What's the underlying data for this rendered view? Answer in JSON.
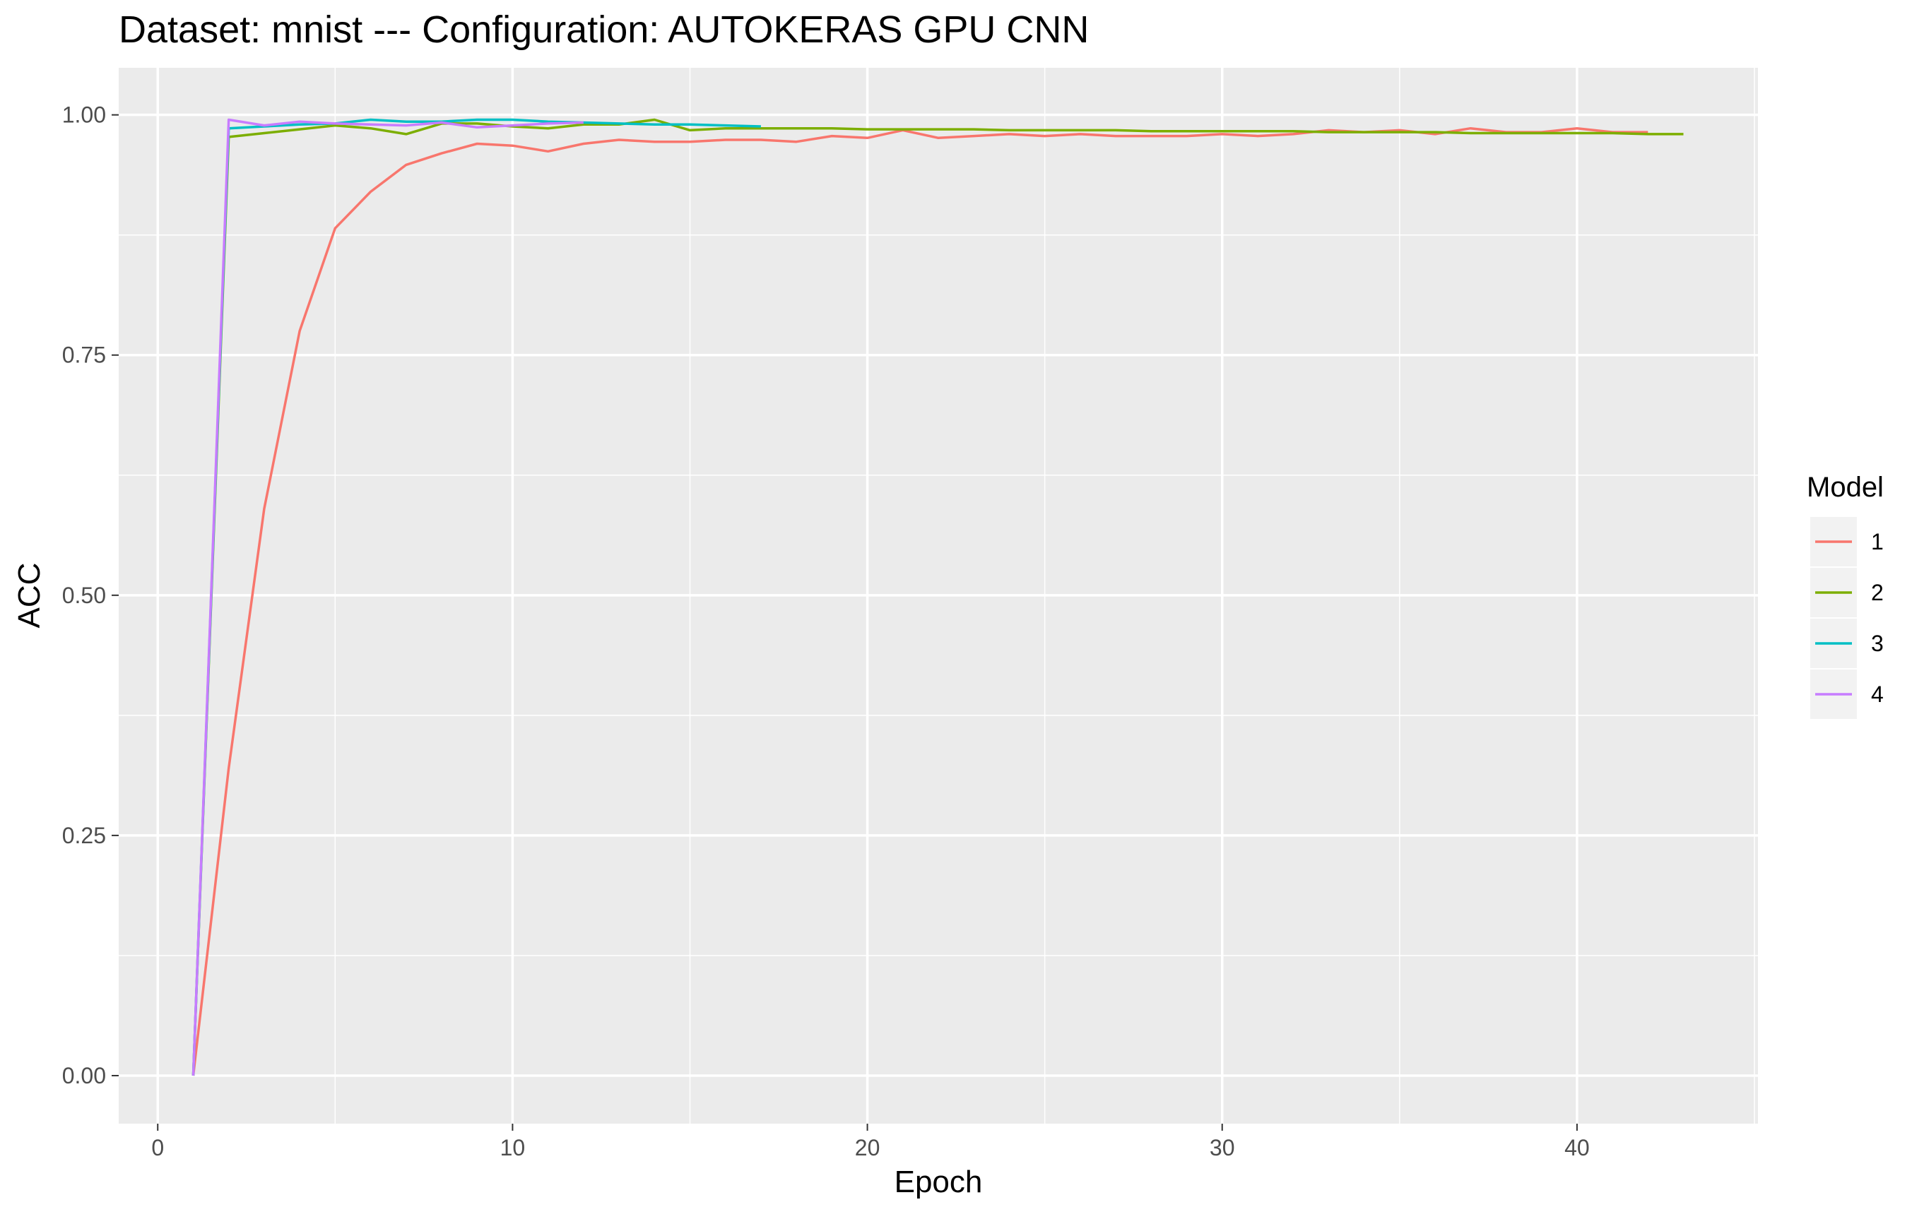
{
  "chart_data": {
    "type": "line",
    "title": "Dataset:  mnist  --- Configuration:  AUTOKERAS GPU CNN",
    "xlabel": "Epoch",
    "ylabel": "ACC",
    "xlim": [
      -1.1,
      45.1
    ],
    "ylim": [
      -0.05,
      1.049
    ],
    "x_ticks": [
      0,
      10,
      20,
      30,
      40
    ],
    "x_tick_labels": [
      "0",
      "10",
      "20",
      "30",
      "40"
    ],
    "y_ticks": [
      0,
      0.25,
      0.5,
      0.75,
      1.0
    ],
    "y_tick_labels": [
      "0.00",
      "0.25",
      "0.50",
      "0.75",
      "1.00"
    ],
    "grid": true,
    "panel_background": "#EBEBEB",
    "grid_color": "#FFFFFF",
    "legend": {
      "title": "Model",
      "position": "right",
      "entries": [
        "1",
        "2",
        "3",
        "4"
      ]
    },
    "series": [
      {
        "name": "1",
        "color": "#F8766D",
        "x": [
          1,
          2,
          3,
          4,
          5,
          6,
          7,
          8,
          9,
          10,
          11,
          12,
          13,
          14,
          15,
          16,
          17,
          18,
          19,
          20,
          21,
          22,
          23,
          24,
          25,
          26,
          27,
          28,
          29,
          30,
          31,
          32,
          33,
          34,
          35,
          36,
          37,
          38,
          39,
          40,
          41,
          42
        ],
        "values": [
          0.0,
          0.32,
          0.59,
          0.775,
          0.882,
          0.92,
          0.948,
          0.96,
          0.97,
          0.968,
          0.962,
          0.97,
          0.974,
          0.972,
          0.972,
          0.974,
          0.974,
          0.972,
          0.978,
          0.976,
          0.984,
          0.976,
          0.978,
          0.98,
          0.978,
          0.98,
          0.978,
          0.978,
          0.978,
          0.98,
          0.978,
          0.98,
          0.984,
          0.982,
          0.984,
          0.98,
          0.986,
          0.982,
          0.982,
          0.986,
          0.982,
          0.982
        ]
      },
      {
        "name": "2",
        "color": "#7CAE00",
        "x": [
          1,
          2,
          3,
          4,
          5,
          6,
          7,
          8,
          9,
          10,
          11,
          12,
          13,
          14,
          15,
          16,
          17,
          18,
          19,
          20,
          21,
          22,
          23,
          24,
          25,
          26,
          27,
          28,
          29,
          30,
          31,
          32,
          33,
          34,
          35,
          36,
          37,
          38,
          39,
          40,
          41,
          42,
          43
        ],
        "values": [
          0.0,
          0.977,
          0.981,
          0.985,
          0.989,
          0.986,
          0.98,
          0.991,
          0.991,
          0.988,
          0.986,
          0.99,
          0.99,
          0.995,
          0.984,
          0.986,
          0.986,
          0.986,
          0.986,
          0.985,
          0.985,
          0.985,
          0.985,
          0.984,
          0.984,
          0.984,
          0.984,
          0.983,
          0.983,
          0.983,
          0.983,
          0.983,
          0.982,
          0.982,
          0.982,
          0.982,
          0.981,
          0.981,
          0.981,
          0.981,
          0.981,
          0.98,
          0.98
        ]
      },
      {
        "name": "3",
        "color": "#00BFC4",
        "x": [
          1,
          2,
          3,
          4,
          5,
          6,
          7,
          8,
          9,
          10,
          11,
          12,
          13,
          14,
          15,
          16,
          17
        ],
        "values": [
          0.0,
          0.986,
          0.988,
          0.99,
          0.991,
          0.995,
          0.993,
          0.993,
          0.995,
          0.995,
          0.993,
          0.992,
          0.991,
          0.99,
          0.99,
          0.989,
          0.988
        ]
      },
      {
        "name": "4",
        "color": "#C77CFF",
        "x": [
          1,
          2,
          3,
          4,
          5,
          6,
          7,
          8,
          9,
          10,
          11,
          12
        ],
        "values": [
          0.0,
          0.995,
          0.989,
          0.993,
          0.991,
          0.99,
          0.989,
          0.992,
          0.987,
          0.989,
          0.991,
          0.992
        ]
      }
    ]
  }
}
